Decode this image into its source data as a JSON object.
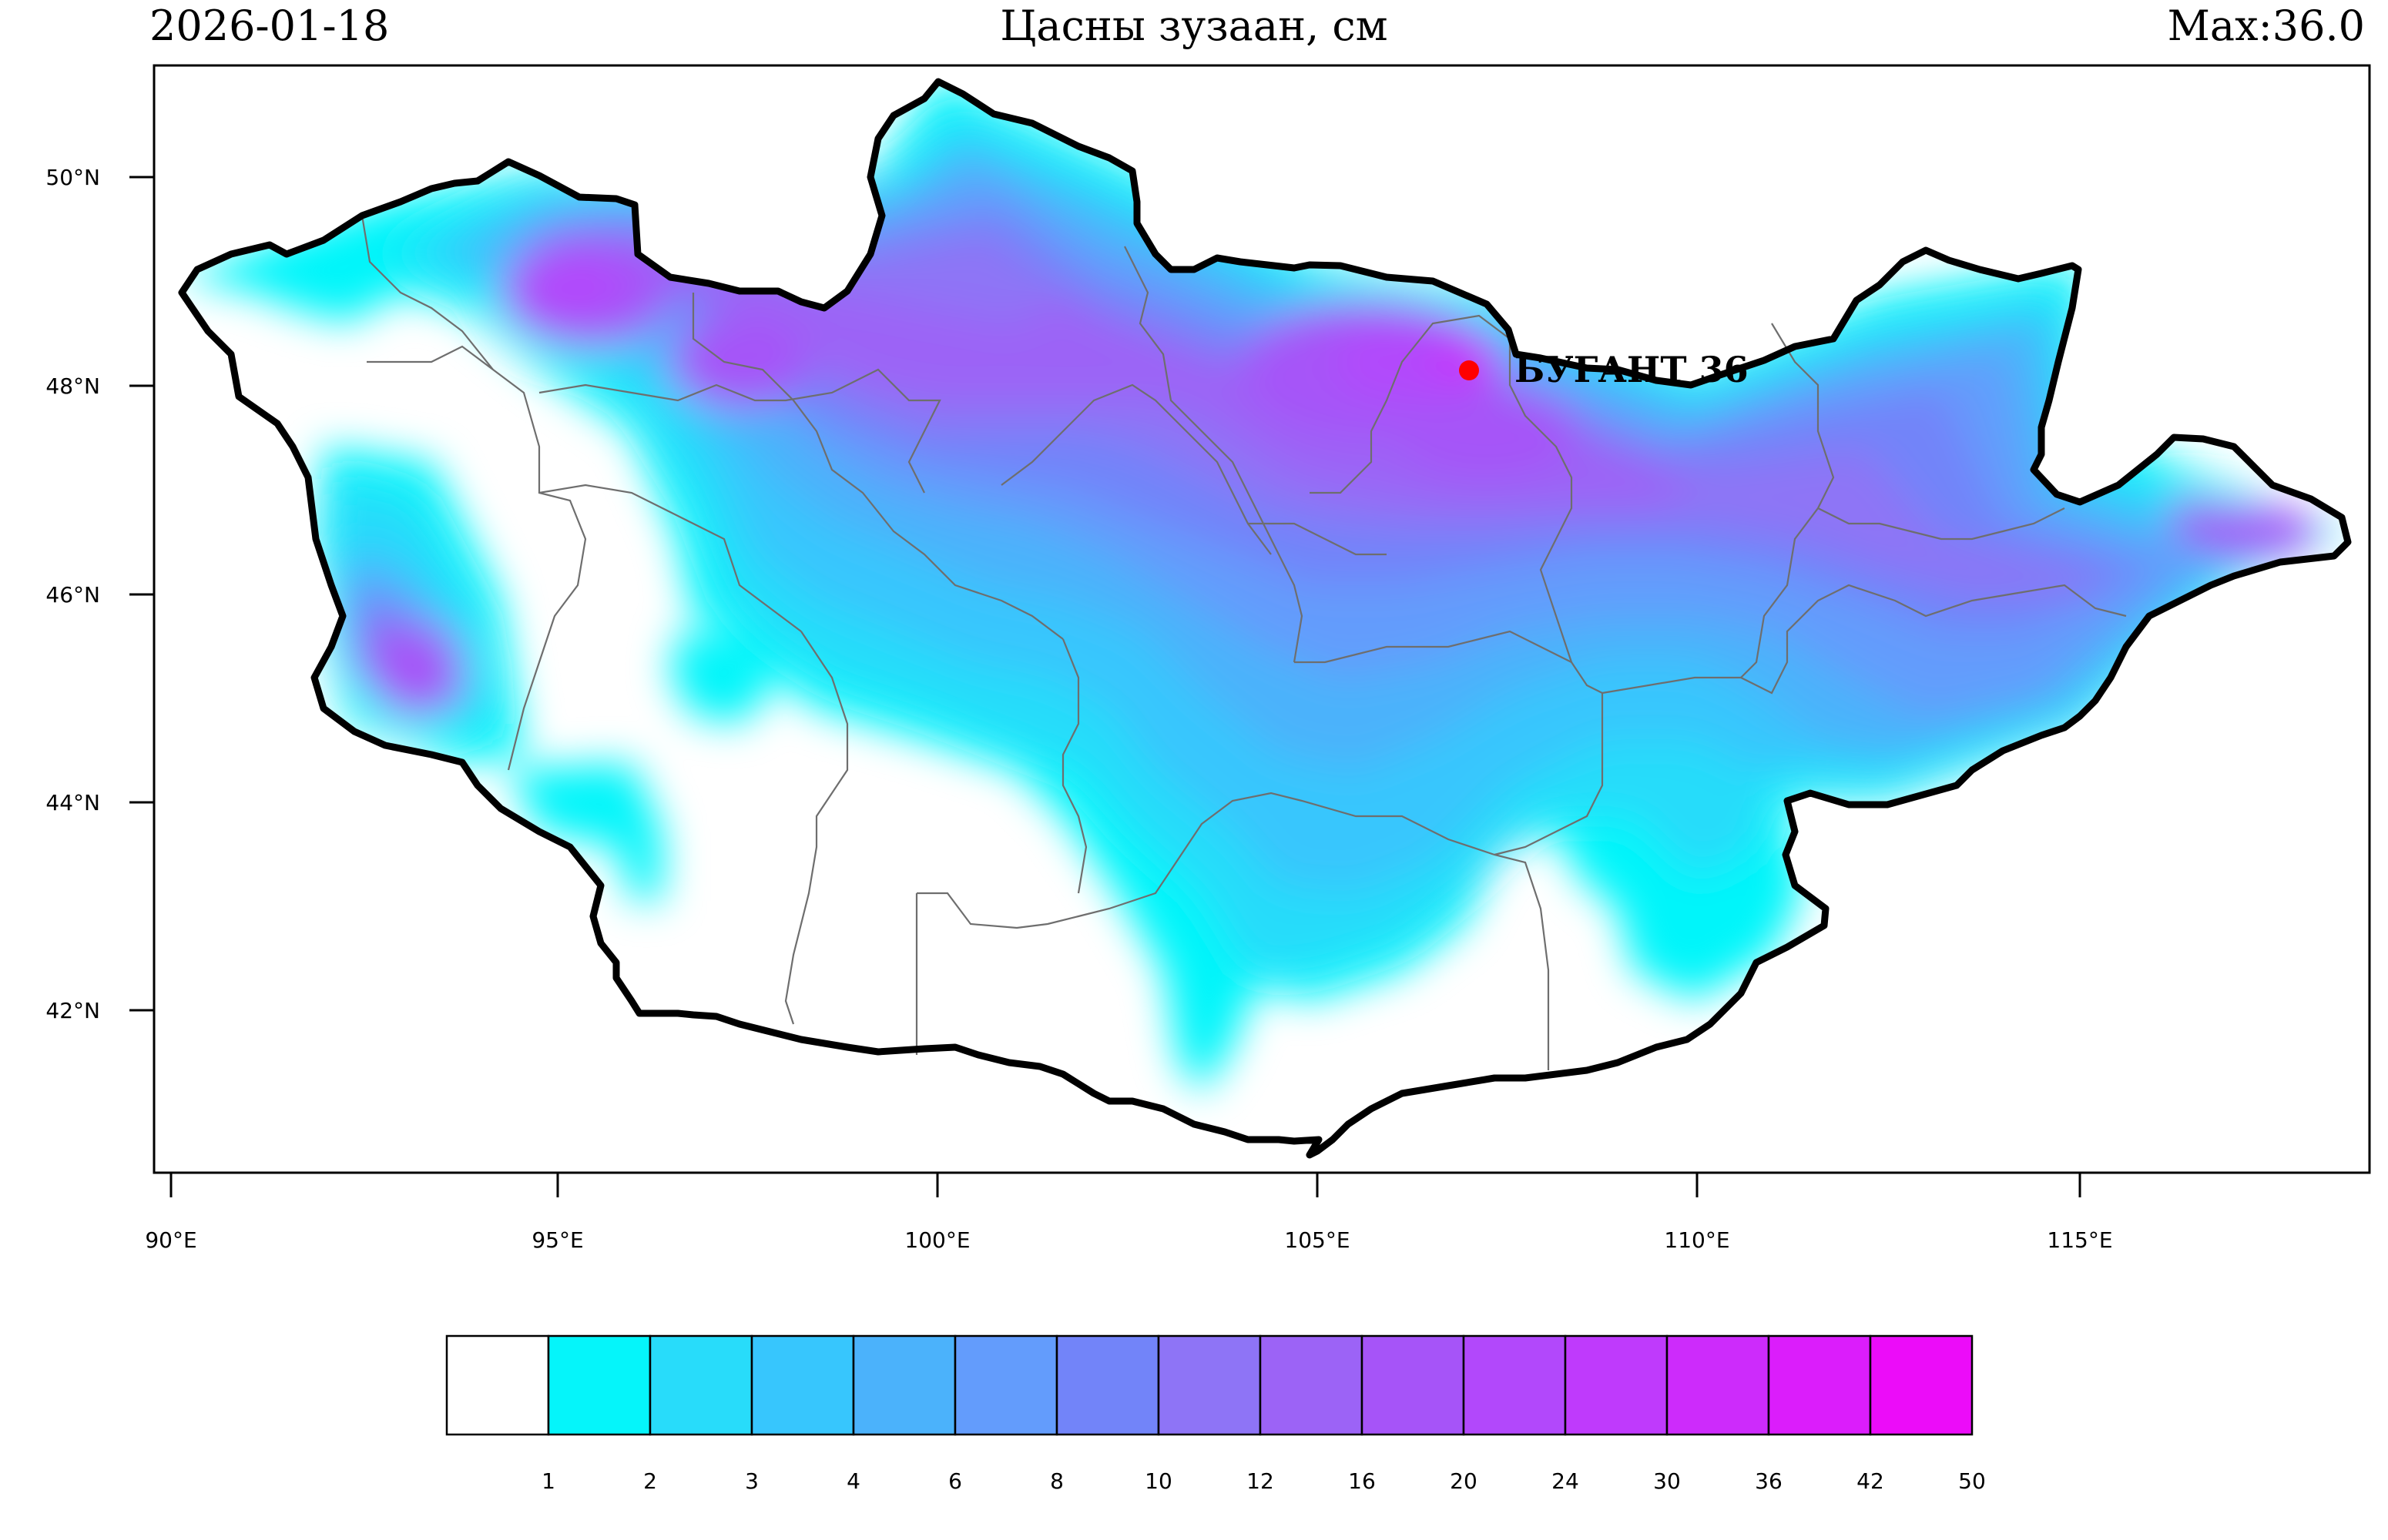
{
  "header": {
    "date": "2026-01-18",
    "title": "Цасны зузаан, см",
    "max": "Max:36.0"
  },
  "map": {
    "lat_labels": [
      "50°N",
      "48°N",
      "46°N",
      "44°N",
      "42°N"
    ],
    "lon_labels": [
      "90°E",
      "95°E",
      "100°E",
      "105°E",
      "110°E",
      "115°E"
    ],
    "station": {
      "name": "БУГАНТ",
      "value": "36",
      "label": "БУГАНТ 36",
      "color": "#ff0000"
    }
  },
  "legend": {
    "labels": [
      "1",
      "2",
      "3",
      "4",
      "6",
      "8",
      "10",
      "12",
      "16",
      "20",
      "24",
      "30",
      "36",
      "42",
      "50"
    ],
    "colors": [
      "#ffffff",
      "#05f5fa",
      "#28dcfa",
      "#37c6fd",
      "#4bb2fb",
      "#639cfc",
      "#7284f9",
      "#8e74f6",
      "#9c63f6",
      "#a654f8",
      "#b248fb",
      "#bf3afc",
      "#cd2bfb",
      "#db1dfb",
      "#ec0cf9"
    ]
  }
}
